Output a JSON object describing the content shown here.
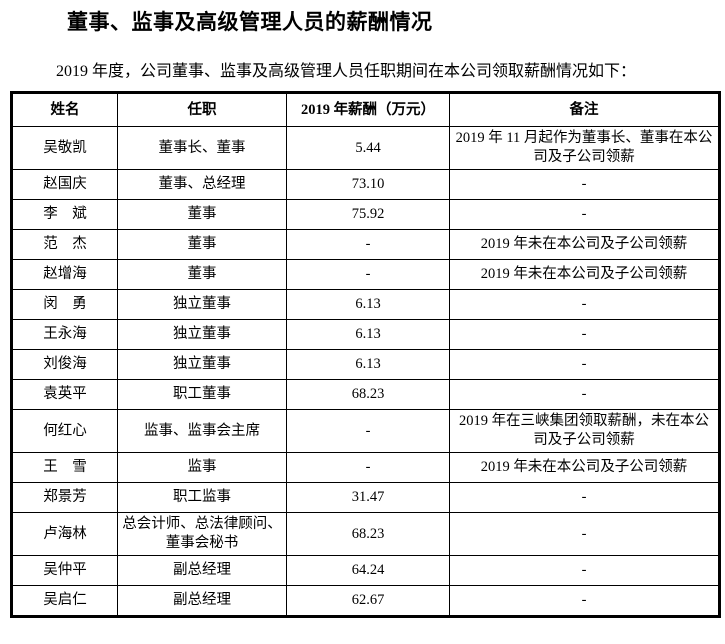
{
  "title": "董事、监事及高级管理人员的薪酬情况",
  "intro": "2019 年度，公司董事、监事及高级管理人员任职期间在本公司领取薪酬情况如下：",
  "table": {
    "headers": [
      "姓名",
      "任职",
      "2019 年薪酬（万元）",
      "备注"
    ],
    "rows": [
      {
        "name": "吴敬凯",
        "position": "董事长、董事",
        "salary": "5.44",
        "note": "2019 年 11 月起作为董事长、董事在本公司及子公司领薪"
      },
      {
        "name": "赵国庆",
        "position": "董事、总经理",
        "salary": "73.10",
        "note": "-"
      },
      {
        "name": "李　斌",
        "position": "董事",
        "salary": "75.92",
        "note": "-"
      },
      {
        "name": "范　杰",
        "position": "董事",
        "salary": "-",
        "note": "2019 年未在本公司及子公司领薪"
      },
      {
        "name": "赵增海",
        "position": "董事",
        "salary": "-",
        "note": "2019 年未在本公司及子公司领薪"
      },
      {
        "name": "闵　勇",
        "position": "独立董事",
        "salary": "6.13",
        "note": "-"
      },
      {
        "name": "王永海",
        "position": "独立董事",
        "salary": "6.13",
        "note": "-"
      },
      {
        "name": "刘俊海",
        "position": "独立董事",
        "salary": "6.13",
        "note": "-"
      },
      {
        "name": "袁英平",
        "position": "职工董事",
        "salary": "68.23",
        "note": "-"
      },
      {
        "name": "何红心",
        "position": "监事、监事会主席",
        "salary": "-",
        "note": "2019 年在三峡集团领取薪酬，未在本公司及子公司领薪"
      },
      {
        "name": "王　雪",
        "position": "监事",
        "salary": "-",
        "note": "2019 年未在本公司及子公司领薪"
      },
      {
        "name": "郑景芳",
        "position": "职工监事",
        "salary": "31.47",
        "note": "-"
      },
      {
        "name": "卢海林",
        "position": "总会计师、总法律顾问、董事会秘书",
        "salary": "68.23",
        "note": "-"
      },
      {
        "name": "吴仲平",
        "position": "副总经理",
        "salary": "64.24",
        "note": "-"
      },
      {
        "name": "吴启仁",
        "position": "副总经理",
        "salary": "62.67",
        "note": "-"
      }
    ]
  }
}
